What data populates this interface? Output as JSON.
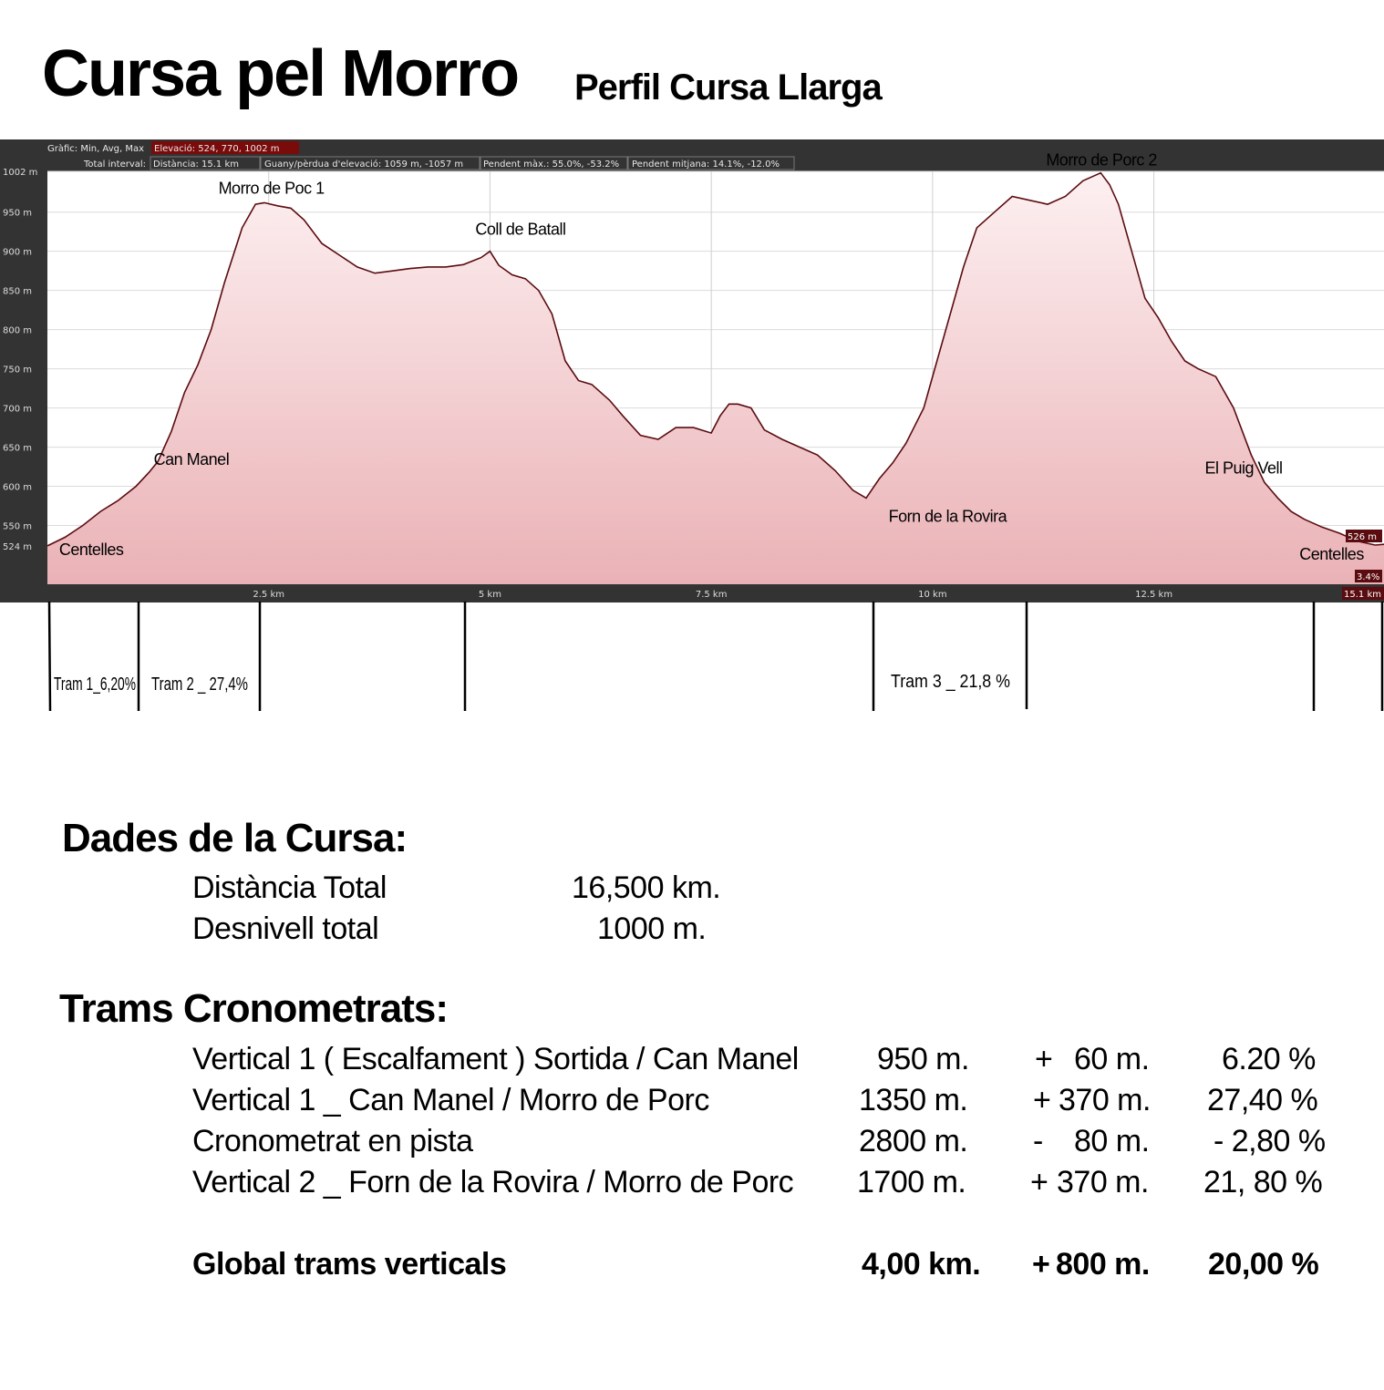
{
  "title": "Cursa pel Morro",
  "subtitle": "Perfil Cursa Llarga",
  "info_bar": {
    "row1_label": "Gràfic: Min, Avg, Max",
    "row1_elevation": "Elevació: 524, 770, 1002 m",
    "row2_label": "Total interval:",
    "row2_distance": "Distància: 15.1 km",
    "row2_gain": "Guany/pèrdua d'elevació: 1059 m, -1057 m",
    "row2_maxslope": "Pendent màx.: 55.0%, -53.2%",
    "row2_avgslope": "Pendent mitjana: 14.1%, -12.0%"
  },
  "chart_data": {
    "type": "area",
    "x_unit": "km",
    "y_unit": "m",
    "xlim": [
      0,
      15.1
    ],
    "ylim": [
      475,
      1002
    ],
    "y_ticks": [
      "1002 m",
      "950 m",
      "900 m",
      "850 m",
      "800 m",
      "750 m",
      "700 m",
      "650 m",
      "600 m",
      "550 m",
      "524 m"
    ],
    "y_tick_values": [
      1002,
      950,
      900,
      850,
      800,
      750,
      700,
      650,
      600,
      550,
      524
    ],
    "x_ticks": [
      "2.5 km",
      "5 km",
      "7.5 km",
      "10 km",
      "12.5 km"
    ],
    "x_tick_values": [
      2.5,
      5,
      7.5,
      10,
      12.5
    ],
    "fill_color": "#f4c6c9",
    "line_color": "#5a0c10",
    "x": [
      0,
      0.2,
      0.4,
      0.6,
      0.8,
      1.0,
      1.15,
      1.25,
      1.4,
      1.55,
      1.7,
      1.85,
      2.0,
      2.1,
      2.2,
      2.35,
      2.45,
      2.6,
      2.75,
      2.9,
      3.1,
      3.3,
      3.5,
      3.7,
      3.9,
      4.1,
      4.3,
      4.5,
      4.7,
      4.9,
      5.0,
      5.1,
      5.25,
      5.4,
      5.55,
      5.7,
      5.85,
      6.0,
      6.15,
      6.35,
      6.5,
      6.7,
      6.9,
      7.1,
      7.3,
      7.5,
      7.6,
      7.7,
      7.8,
      7.95,
      8.1,
      8.3,
      8.5,
      8.7,
      8.9,
      9.1,
      9.25,
      9.4,
      9.55,
      9.7,
      9.9,
      10.05,
      10.2,
      10.35,
      10.5,
      10.7,
      10.9,
      11.1,
      11.3,
      11.5,
      11.7,
      11.9,
      12.0,
      12.1,
      12.25,
      12.4,
      12.55,
      12.7,
      12.85,
      13.0,
      13.2,
      13.4,
      13.6,
      13.75,
      13.9,
      14.05,
      14.2,
      14.4,
      14.6,
      14.8,
      15.0,
      15.1
    ],
    "y": [
      524,
      535,
      550,
      568,
      582,
      600,
      618,
      632,
      670,
      720,
      755,
      800,
      860,
      895,
      930,
      960,
      962,
      958,
      955,
      940,
      910,
      895,
      880,
      872,
      875,
      878,
      880,
      880,
      883,
      892,
      900,
      882,
      870,
      865,
      850,
      820,
      760,
      735,
      730,
      710,
      690,
      665,
      660,
      675,
      675,
      668,
      690,
      705,
      705,
      700,
      672,
      660,
      650,
      640,
      620,
      595,
      585,
      610,
      630,
      655,
      700,
      760,
      820,
      880,
      930,
      950,
      970,
      965,
      960,
      970,
      990,
      1000,
      985,
      960,
      900,
      840,
      815,
      785,
      760,
      750,
      740,
      700,
      640,
      605,
      585,
      568,
      558,
      548,
      540,
      530,
      525,
      526
    ],
    "annotations": [
      {
        "label": "Centelles",
        "x": 0.05,
        "y": 524
      },
      {
        "label": "Can Manel",
        "x": 1.15,
        "y": 618
      },
      {
        "label": "Morro de Poc 1",
        "x": 2.55,
        "y": 962
      },
      {
        "label": "Coll de Batall",
        "x": 5.0,
        "y": 900
      },
      {
        "label": "Forn de la Rovira",
        "x": 9.4,
        "y": 585
      },
      {
        "label": "Morro de Porc 2",
        "x": 11.9,
        "y": 1000
      },
      {
        "label": "El Puig Vell",
        "x": 13.9,
        "y": 605
      },
      {
        "label": "Centelles",
        "x": 15.0,
        "y": 525
      }
    ],
    "end_readouts": [
      "526 m",
      "3.4%",
      "15.1 km"
    ]
  },
  "trams": {
    "labels": [
      "Tram 1_6,20%",
      "Tram 2 _ 27,4%",
      "Tram 3 _ 21,8 %"
    ]
  },
  "dades": {
    "heading": "Dades de la Cursa:",
    "rows": [
      {
        "label": "Distància Total",
        "value": "16,500 km."
      },
      {
        "label": "Desnivell total",
        "value": "1000 m."
      }
    ]
  },
  "cronometrats": {
    "heading": "Trams Cronometrats:",
    "rows": [
      {
        "name": "Vertical 1 ( Escalfament ) Sortida / Can Manel",
        "dist": "950 m.",
        "sign": "+",
        "elev": "60 m.",
        "pct": "6.20 %"
      },
      {
        "name": "Vertical 1 _ Can Manel / Morro de Porc",
        "dist": "1350 m.",
        "sign": "+",
        "elev": "370 m.",
        "pct": "27,40 %"
      },
      {
        "name": "Cronometrat en pista",
        "dist": "2800 m.",
        "sign": "-",
        "elev": "80 m.",
        "pct": "- 2,80 %"
      },
      {
        "name": "Vertical 2 _ Forn de la Rovira / Morro de Porc",
        "dist": "1700 m.",
        "sign": "+",
        "elev": "370 m.",
        "pct": "21, 80 %"
      }
    ],
    "global": {
      "name": "Global trams verticals",
      "dist": "4,00 km.",
      "sign": "+",
      "elev": "800 m.",
      "pct": "20,00 %"
    }
  }
}
